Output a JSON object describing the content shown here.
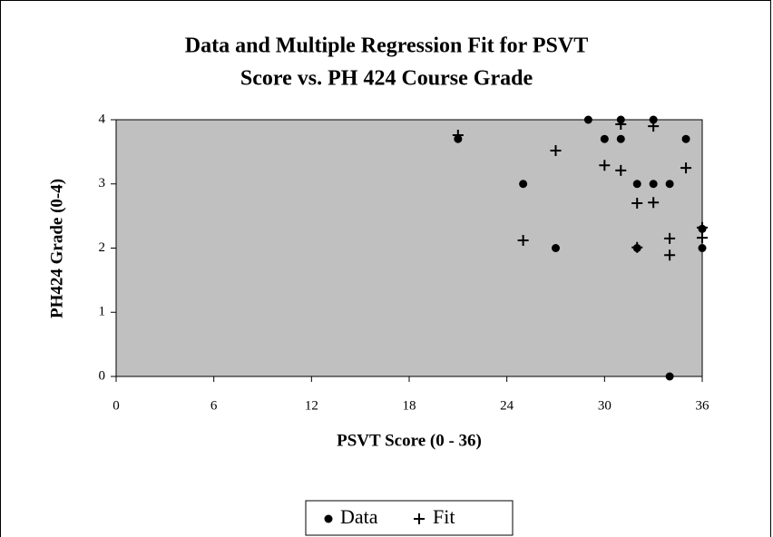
{
  "chart_data": {
    "type": "scatter",
    "title": [
      "Data and Multiple Regression Fit for PSVT",
      "Score vs. PH 424 Course Grade"
    ],
    "x_label": "PSVT Score (0 - 36)",
    "y_label": "PH424 Grade (0-4)",
    "xlim": [
      0,
      36
    ],
    "ylim": [
      0,
      4
    ],
    "xticks": [
      0,
      6,
      12,
      18,
      24,
      30,
      36
    ],
    "yticks": [
      0,
      1,
      2,
      3,
      4
    ],
    "plot_background": "#c0c0c0",
    "legend": "bottom",
    "series": [
      {
        "name": "Data",
        "marker": "dot",
        "color": "#000000",
        "x": [
          21,
          25,
          27,
          29,
          30,
          31,
          31,
          32,
          32,
          33,
          33,
          34,
          34,
          35,
          36,
          36
        ],
        "values": [
          3.7,
          3,
          2,
          4,
          3.7,
          4,
          3.7,
          3,
          2,
          4,
          3,
          3,
          0,
          3.7,
          2.3,
          2
        ]
      },
      {
        "name": "Fit",
        "marker": "plus",
        "color": "#000000",
        "x": [
          21,
          25,
          27,
          30,
          31,
          31,
          32,
          32,
          33,
          33,
          34,
          34,
          35,
          36,
          36
        ],
        "values": [
          3.76,
          2.12,
          3.52,
          3.29,
          3.93,
          3.21,
          2.7,
          2.01,
          3.9,
          2.71,
          2.15,
          1.89,
          3.25,
          2.32,
          2.16
        ]
      }
    ]
  }
}
